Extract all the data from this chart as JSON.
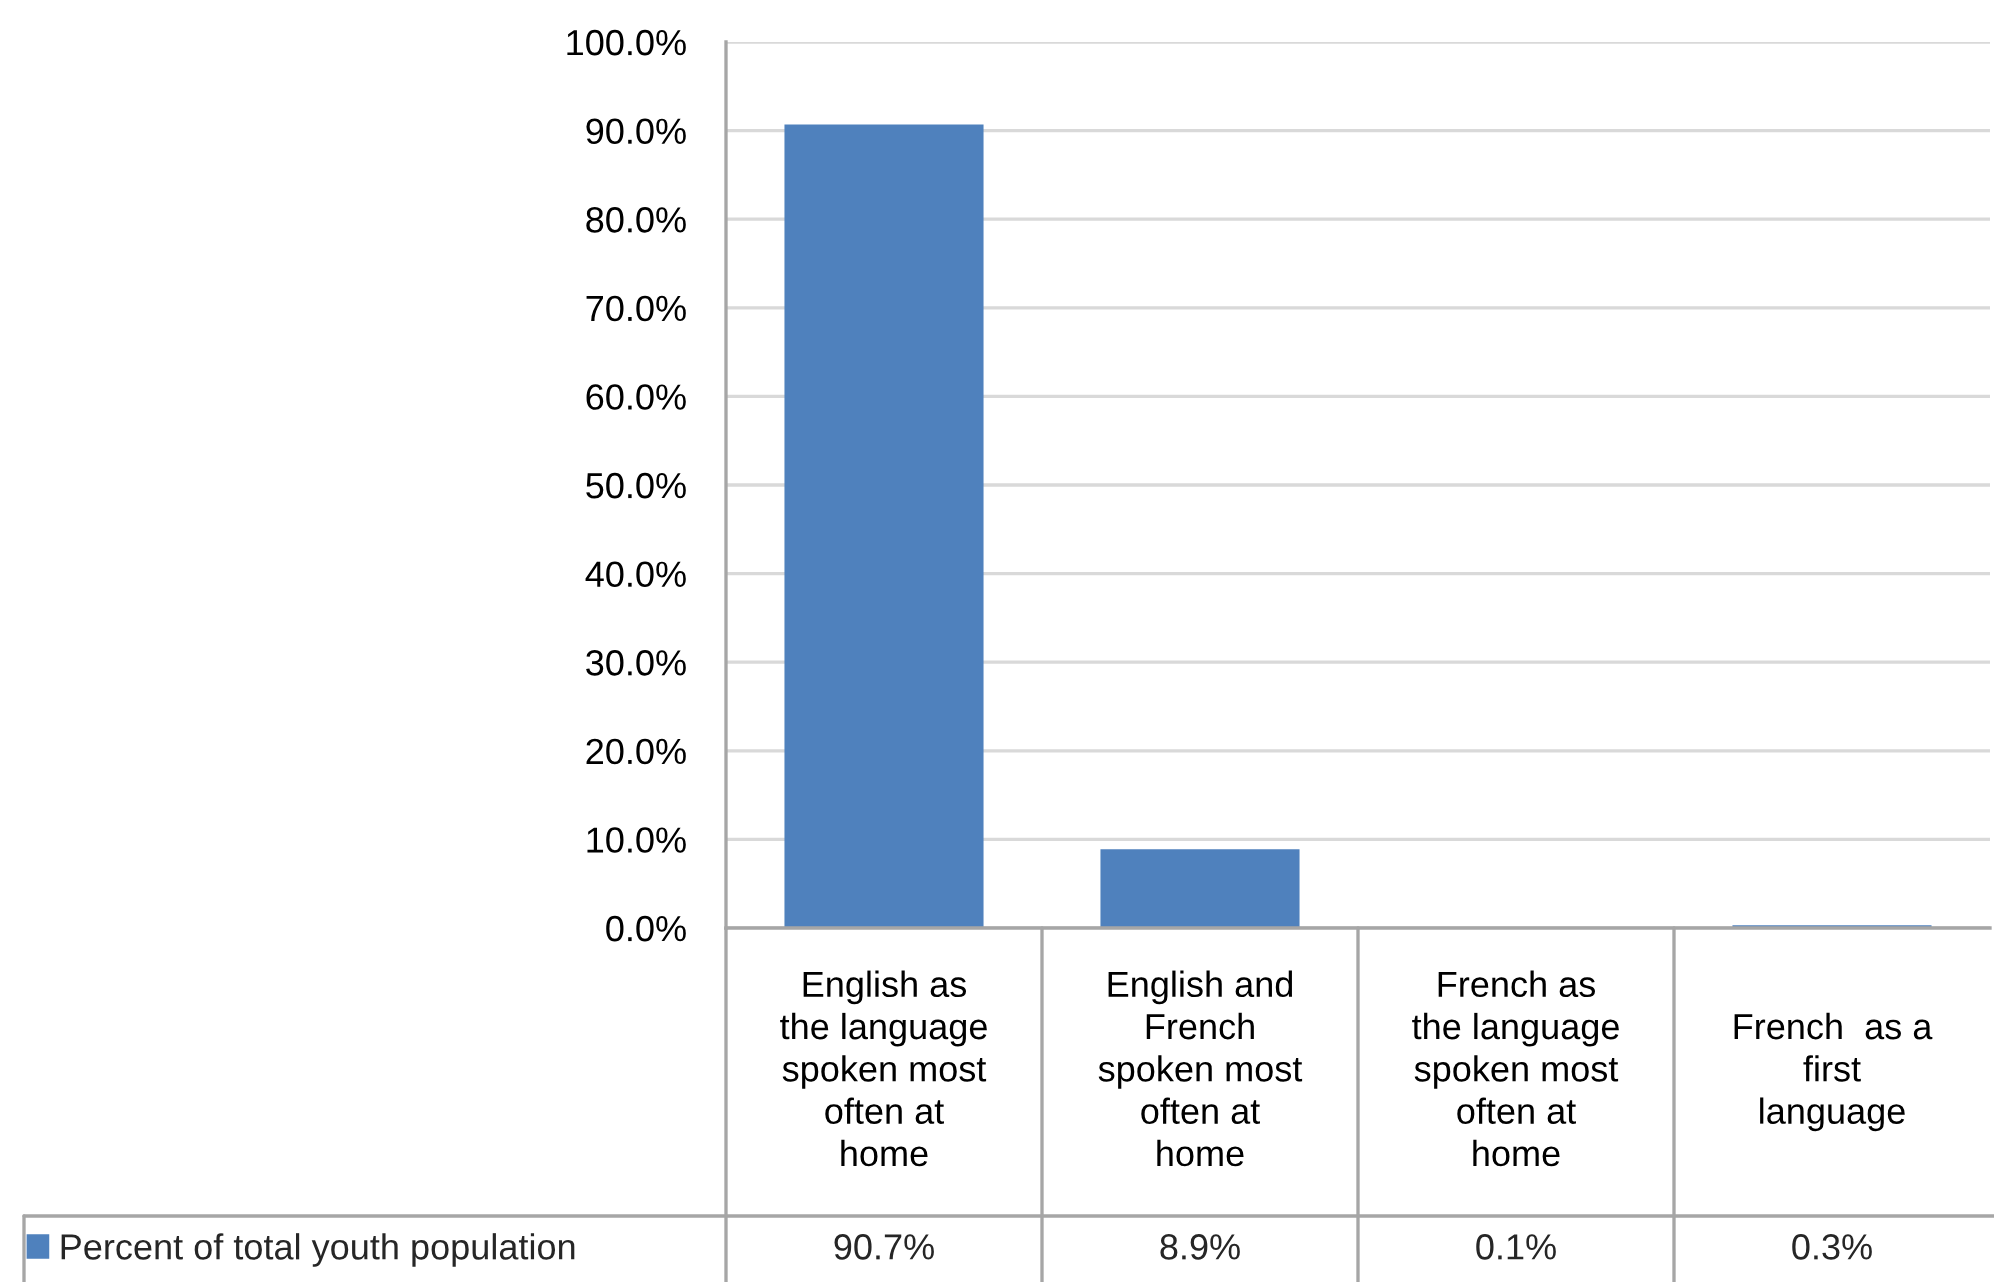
{
  "chart_data": {
    "type": "bar",
    "categories": [
      "English as\nthe language\nspoken most\noften at\nhome",
      "English and\nFrench\nspoken most\noften at\nhome",
      "French as\nthe language\nspoken most\noften at\nhome",
      "French  as a\nfirst\nlanguage"
    ],
    "series": [
      {
        "name": "Percent of total youth population",
        "color": "#4f81bd",
        "values": [
          90.7,
          8.9,
          0.1,
          0.3
        ],
        "value_labels": [
          "90.7%",
          "8.9%",
          "0.1%",
          "0.3%"
        ]
      }
    ],
    "ylim": [
      0,
      100
    ],
    "yticks": [
      {
        "value": 0,
        "label": "0.0%"
      },
      {
        "value": 10,
        "label": "10.0%"
      },
      {
        "value": 20,
        "label": "20.0%"
      },
      {
        "value": 30,
        "label": "30.0%"
      },
      {
        "value": 40,
        "label": "40.0%"
      },
      {
        "value": 50,
        "label": "50.0%"
      },
      {
        "value": 60,
        "label": "60.0%"
      },
      {
        "value": 70,
        "label": "70.0%"
      },
      {
        "value": 80,
        "label": "80.0%"
      },
      {
        "value": 90,
        "label": "90.0%"
      },
      {
        "value": 100,
        "label": "100.0%"
      }
    ],
    "grid": "y",
    "legend": "bottom left"
  }
}
